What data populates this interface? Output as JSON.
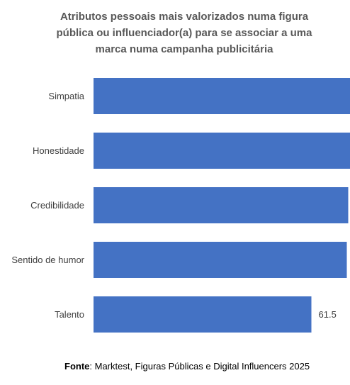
{
  "title_lines": [
    "Atributos pessoais  mais valorizados numa figura",
    "pública ou influenciador(a) para se associar a uma",
    "marca numa campanha publicitária"
  ],
  "source": {
    "label": "Fonte",
    "text": ": Marktest, Figuras Públicas e Digital Influencers 2025"
  },
  "colors": {
    "bar": "#4472C4",
    "text": "#404040"
  },
  "chart_data": {
    "type": "bar",
    "orientation": "horizontal",
    "title": "Atributos pessoais  mais valorizados numa figura pública ou influenciador(a) para se associar a uma marca numa campanha publicitária",
    "categories": [
      "Simpatia",
      "Honestidade",
      "Credibilidade",
      "Sentido de humor",
      "Talento"
    ],
    "values": [
      76.1,
      75.7,
      71.9,
      71.5,
      61.5
    ],
    "xlim": [
      0,
      80
    ],
    "grid": false,
    "legend": "none"
  }
}
